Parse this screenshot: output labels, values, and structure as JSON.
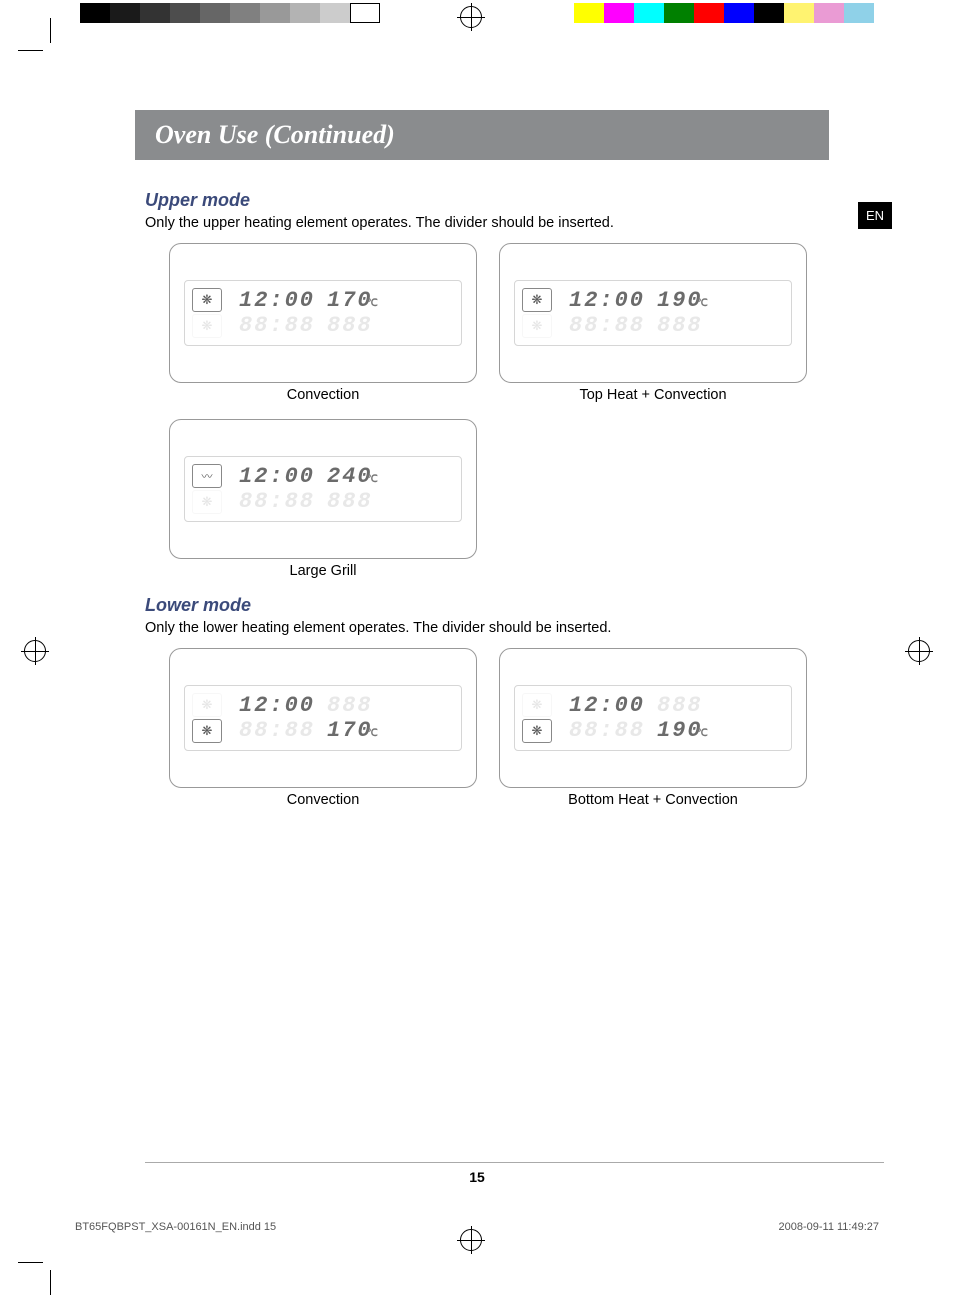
{
  "header": {
    "title": "Oven Use (Continued)"
  },
  "lang_tab": "EN",
  "upper_mode": {
    "title": "Upper mode",
    "desc": "Only the upper heating element operates. The divider should be inserted.",
    "panels": [
      {
        "time": "12:00",
        "temp": "170",
        "unit": "℃",
        "caption": "Convection",
        "icon_type": "fan"
      },
      {
        "time": "12:00",
        "temp": "190",
        "unit": "℃",
        "caption": "Top Heat + Convection",
        "icon_type": "fan"
      },
      {
        "time": "12:00",
        "temp": "240",
        "unit": "℃",
        "caption": "Large Grill",
        "icon_type": "grill"
      }
    ],
    "ghost_time": "88:88",
    "ghost_temp": "888"
  },
  "lower_mode": {
    "title": "Lower mode",
    "desc": "Only the lower heating element operates. The divider should be inserted.",
    "panels": [
      {
        "time": "12:00",
        "temp": "170",
        "unit": "℃",
        "caption": "Convection",
        "icon_type": "fan"
      },
      {
        "time": "12:00",
        "temp": "190",
        "unit": "℃",
        "caption": "Bottom Heat + Convection",
        "icon_type": "bottom-fan"
      }
    ],
    "ghost_time": "88:88",
    "ghost_temp": "888"
  },
  "page_number": "15",
  "footer": {
    "left": "BT65FQBPST_XSA-00161N_EN.indd   15",
    "right": "2008-09-11      11:49:27"
  },
  "colorbar_gray": [
    "#000000",
    "#1a1a1a",
    "#333333",
    "#4d4d4d",
    "#666666",
    "#808080",
    "#999999",
    "#b3b3b3",
    "#cccccc",
    "#ffffff"
  ],
  "colorbar_color": [
    "#ffff00",
    "#ff00ff",
    "#00ffff",
    "#008000",
    "#ff0000",
    "#0000ff",
    "#000000",
    "#fff370",
    "#ea9bd4",
    "#8fd1e8"
  ]
}
